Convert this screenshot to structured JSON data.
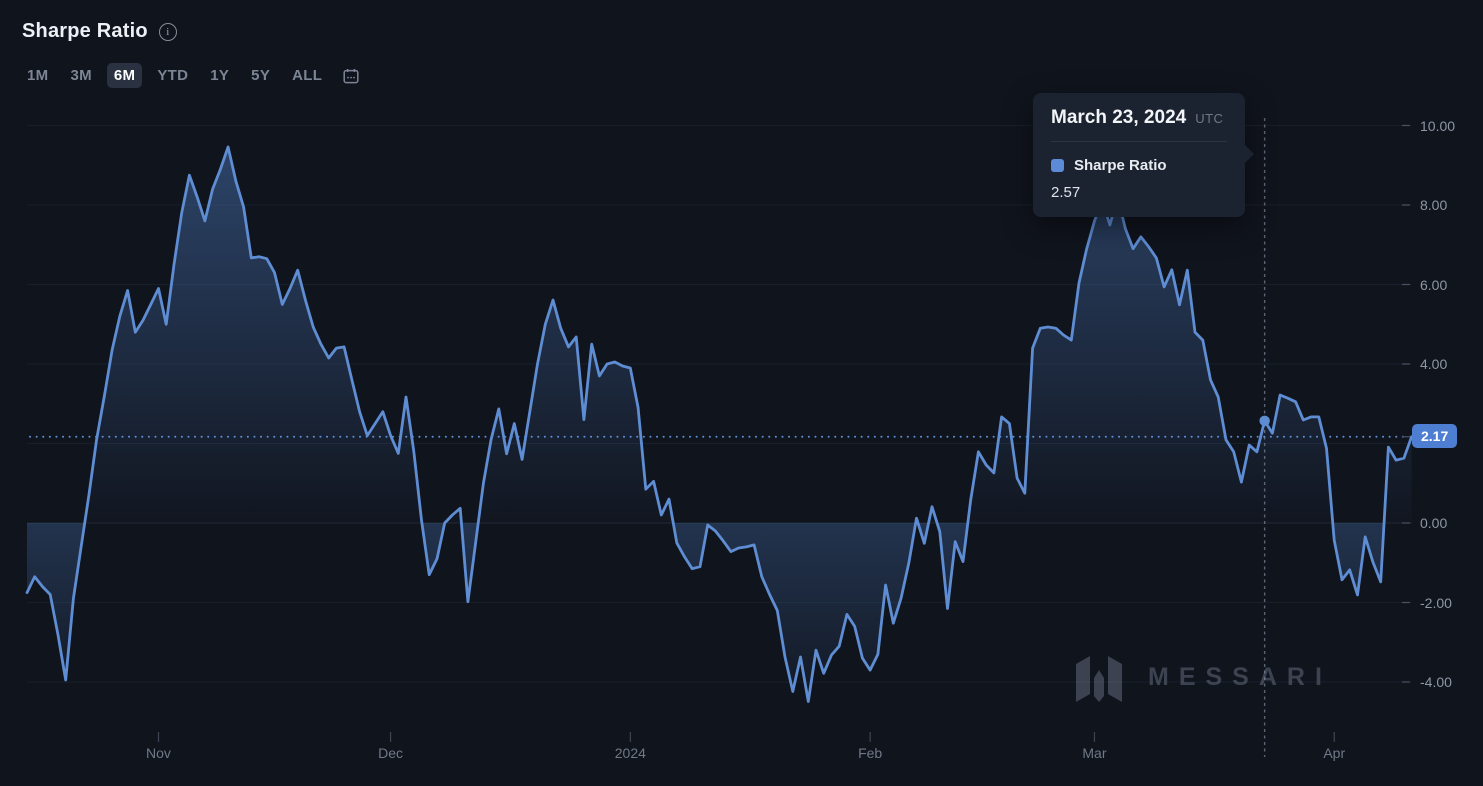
{
  "header": {
    "title": "Sharpe Ratio"
  },
  "toolbar": {
    "ranges": [
      "1M",
      "3M",
      "6M",
      "YTD",
      "1Y",
      "5Y",
      "ALL"
    ],
    "active_range": "6M"
  },
  "tooltip": {
    "date": "March 23, 2024",
    "timezone": "UTC",
    "series_label": "Sharpe Ratio",
    "value": "2.57"
  },
  "current_value_badge": {
    "value": "2.17"
  },
  "watermark": {
    "text": "MESSARI"
  },
  "colors": {
    "background": "#10141d",
    "line": "#5f8dd3",
    "area_fill": "#4d7cc0",
    "badge_bg": "#4d7ed1",
    "tooltip_bg": "#1c2330",
    "swatch": "#5e8bd8",
    "crosshair": "#8e99ad",
    "active_button_bg": "#2a3140"
  },
  "chart_data": {
    "type": "area",
    "title": "Sharpe Ratio",
    "series_name": "Sharpe Ratio",
    "frequency": "daily",
    "start_date": "2023-10-15",
    "end_date": "2024-04-11",
    "ylim": [
      -4.7,
      10.3
    ],
    "grid": true,
    "legend_position": "tooltip-only",
    "values": [
      -1.75,
      -1.35,
      -1.6,
      -1.8,
      -2.8,
      -3.95,
      -1.9,
      -0.6,
      0.7,
      2.1,
      3.2,
      4.35,
      5.2,
      5.85,
      4.8,
      5.1,
      5.5,
      5.9,
      5.0,
      6.5,
      7.8,
      8.75,
      8.2,
      7.6,
      8.4,
      8.9,
      9.46,
      8.6,
      7.95,
      6.67,
      6.7,
      6.65,
      6.3,
      5.5,
      5.9,
      6.36,
      5.6,
      4.93,
      4.5,
      4.15,
      4.4,
      4.43,
      3.6,
      2.8,
      2.2,
      2.5,
      2.8,
      2.2,
      1.75,
      3.17,
      1.8,
      0.07,
      -1.3,
      -0.9,
      0.0,
      0.2,
      0.37,
      -1.98,
      -0.5,
      1.0,
      2.1,
      2.87,
      1.74,
      2.5,
      1.6,
      2.8,
      4.0,
      5.0,
      5.61,
      4.9,
      4.43,
      4.68,
      2.6,
      4.5,
      3.7,
      4.0,
      4.05,
      3.95,
      3.9,
      2.9,
      0.85,
      1.05,
      0.2,
      0.6,
      -0.5,
      -0.85,
      -1.15,
      -1.1,
      -0.05,
      -0.2,
      -0.45,
      -0.72,
      -0.63,
      -0.6,
      -0.55,
      -1.35,
      -1.8,
      -2.2,
      -3.37,
      -4.24,
      -3.37,
      -4.49,
      -3.2,
      -3.78,
      -3.32,
      -3.1,
      -2.3,
      -2.6,
      -3.4,
      -3.7,
      -3.3,
      -1.56,
      -2.52,
      -1.89,
      -1.01,
      0.12,
      -0.51,
      0.41,
      -0.22,
      -2.15,
      -0.47,
      -0.97,
      0.58,
      1.79,
      1.46,
      1.26,
      2.67,
      2.5,
      1.13,
      0.75,
      4.4,
      4.9,
      4.93,
      4.9,
      4.73,
      4.6,
      6.04,
      6.9,
      7.6,
      8.1,
      7.5,
      8.2,
      7.4,
      6.9,
      7.2,
      6.95,
      6.67,
      5.94,
      6.37,
      5.49,
      6.36,
      4.8,
      4.6,
      3.6,
      3.17,
      2.09,
      1.79,
      1.03,
      1.96,
      1.79,
      2.57,
      2.26,
      3.22,
      3.14,
      3.05,
      2.59,
      2.67,
      2.67,
      1.88,
      -0.43,
      -1.43,
      -1.18,
      -1.81,
      -0.35,
      -0.98,
      -1.48,
      1.91,
      1.58,
      1.63,
      2.17
    ],
    "highlight_point": {
      "date": "2024-03-23",
      "index": 160,
      "value": 2.57
    },
    "last_value": 2.17,
    "y_ticks": [
      {
        "label": "10.00",
        "value": 10
      },
      {
        "label": "8.00",
        "value": 8
      },
      {
        "label": "6.00",
        "value": 6
      },
      {
        "label": "4.00",
        "value": 4
      },
      {
        "label": "0.00",
        "value": 0
      },
      {
        "label": "-2.00",
        "value": -2
      },
      {
        "label": "-4.00",
        "value": -4
      }
    ],
    "gridline_values": [
      10,
      8,
      6,
      4,
      2,
      0,
      -2,
      -4
    ],
    "x_ticks": [
      {
        "label": "Nov",
        "date": "2023-11-01"
      },
      {
        "label": "Dec",
        "date": "2023-12-01"
      },
      {
        "label": "2024",
        "date": "2024-01-01"
      },
      {
        "label": "Feb",
        "date": "2024-02-01"
      },
      {
        "label": "Mar",
        "date": "2024-03-01"
      },
      {
        "label": "Apr",
        "date": "2024-04-01"
      }
    ]
  }
}
